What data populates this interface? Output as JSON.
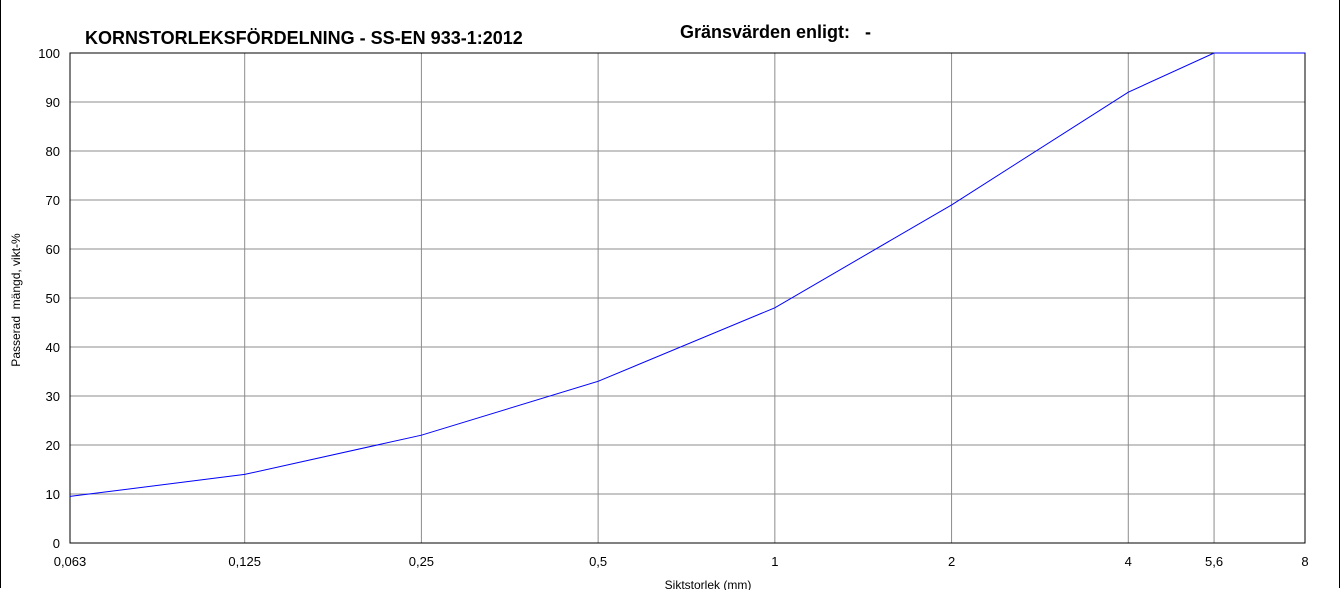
{
  "chart_data": {
    "type": "line",
    "title": "KORNSTORLEKSFÖRDELNING - SS-EN 933-1:2012",
    "subtitle": "Gränsvärden enligt:   -",
    "xlabel": "Siktstorlek (mm)",
    "ylabel": "Passerad  mängd, vikt-%",
    "x_scale": "log2",
    "x_ticks": [
      "0,063",
      "0,125",
      "0,25",
      "0,5",
      "1",
      "2",
      "4",
      "5,6",
      "8"
    ],
    "x_tick_values": [
      0.063,
      0.125,
      0.25,
      0.5,
      1,
      2,
      4,
      5.6,
      8
    ],
    "y_ticks": [
      "0",
      "10",
      "20",
      "30",
      "40",
      "50",
      "60",
      "70",
      "80",
      "90",
      "100"
    ],
    "ylim": [
      0,
      100
    ],
    "xlim": [
      0.063,
      8
    ],
    "grid": true,
    "series": [
      {
        "color": "#0000ff",
        "x": [
          0.063,
          0.125,
          0.25,
          0.5,
          1,
          2,
          4,
          5.6,
          8
        ],
        "y": [
          9.5,
          14,
          22,
          33,
          48,
          69,
          92,
          100,
          100
        ]
      }
    ]
  }
}
